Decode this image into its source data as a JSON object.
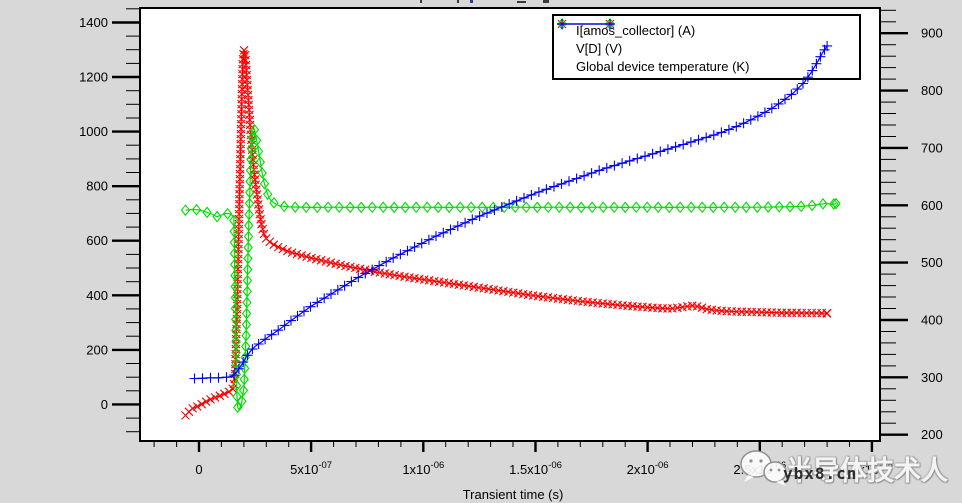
{
  "page": {
    "background": "#d8d8d8",
    "plot_background": "#ffffff"
  },
  "legend": {
    "entries": [
      {
        "label": "I[amos_collector] (A)",
        "color": "#ff0000",
        "marker": "x"
      },
      {
        "label": "V[D] (V)",
        "color": "#00dd00",
        "marker": "diamond"
      },
      {
        "label": "Global device temperature (K)",
        "color": "#0000ff",
        "marker": "plus"
      }
    ]
  },
  "watermark": {
    "icon": "wechat-icon",
    "cn_text": "半导体技术人",
    "site_text": "ybx8.cn"
  },
  "chart_data": {
    "type": "line",
    "xlabel": "Transient time (s)",
    "grid": false,
    "legend_position": "top-right",
    "axes": {
      "x": {
        "range": [
          -2.63e-07,
          3.036e-06
        ],
        "ticks": [
          {
            "v": 0,
            "label": "0"
          },
          {
            "v": 5e-07,
            "label": "5x10^-07"
          },
          {
            "v": 1e-06,
            "label": "1x10^-06"
          },
          {
            "v": 1.5e-06,
            "label": "1.5x10^-06"
          },
          {
            "v": 2e-06,
            "label": "2x10^-06"
          },
          {
            "v": 2.5e-06,
            "label": "2.5x10^-06"
          },
          {
            "v": 3e-06,
            "label": "3x10^-06"
          }
        ],
        "minor": {
          "start": -2e-07,
          "end": 3e-06,
          "step": 1e-07
        }
      },
      "y_left": {
        "range": [
          -134,
          1453
        ],
        "ticks": [
          0,
          200,
          400,
          600,
          800,
          1000,
          1200,
          1400
        ],
        "minor": {
          "start": -100,
          "end": 1450,
          "step": 50
        }
      },
      "y_right": {
        "range": [
          189,
          944
        ],
        "ticks": [
          200,
          300,
          400,
          500,
          600,
          700,
          800,
          900
        ],
        "minor": {
          "start": 200,
          "end": 940,
          "step": 20
        }
      }
    },
    "series": [
      {
        "name": "I[amos_collector] (A)",
        "axis": "left",
        "color": "#ff0000",
        "marker": "x",
        "marker_px_spacing": 5,
        "points": [
          [
            -6e-08,
            -40
          ],
          [
            -3e-08,
            -15
          ],
          [
            0.0,
            -5
          ],
          [
            2e-08,
            5
          ],
          [
            5e-08,
            18
          ],
          [
            8e-08,
            28
          ],
          [
            1.1e-07,
            38
          ],
          [
            1.3e-07,
            45
          ],
          [
            1.5e-07,
            55
          ],
          [
            1.6e-07,
            90
          ],
          [
            1.7e-07,
            350
          ],
          [
            1.8e-07,
            750
          ],
          [
            1.9e-07,
            1100
          ],
          [
            1.95e-07,
            1250
          ],
          [
            2e-07,
            1300
          ],
          [
            2.05e-07,
            1290
          ],
          [
            2.1e-07,
            1240
          ],
          [
            2.2e-07,
            1120
          ],
          [
            2.3e-07,
            1000
          ],
          [
            2.4e-07,
            900
          ],
          [
            2.5e-07,
            820
          ],
          [
            2.6e-07,
            760
          ],
          [
            2.7e-07,
            700
          ],
          [
            2.8e-07,
            655
          ],
          [
            2.9e-07,
            625
          ],
          [
            3e-07,
            608
          ],
          [
            3.2e-07,
            592
          ],
          [
            3.5e-07,
            578
          ],
          [
            4e-07,
            560
          ],
          [
            4.5e-07,
            548
          ],
          [
            5e-07,
            537
          ],
          [
            5.5e-07,
            527
          ],
          [
            6e-07,
            517
          ],
          [
            6.5e-07,
            508
          ],
          [
            7e-07,
            500
          ],
          [
            7.5e-07,
            492
          ],
          [
            8e-07,
            484
          ],
          [
            8.5e-07,
            477
          ],
          [
            9e-07,
            470
          ],
          [
            9.5e-07,
            464
          ],
          [
            1e-06,
            458
          ],
          [
            1.05e-06,
            452
          ],
          [
            1.1e-06,
            446
          ],
          [
            1.15e-06,
            440
          ],
          [
            1.2e-06,
            434
          ],
          [
            1.25e-06,
            428
          ],
          [
            1.3e-06,
            422
          ],
          [
            1.35e-06,
            416
          ],
          [
            1.4e-06,
            410
          ],
          [
            1.45e-06,
            404
          ],
          [
            1.5e-06,
            398
          ],
          [
            1.55e-06,
            393
          ],
          [
            1.6e-06,
            388
          ],
          [
            1.65e-06,
            383
          ],
          [
            1.7e-06,
            378
          ],
          [
            1.75e-06,
            374
          ],
          [
            1.8e-06,
            370
          ],
          [
            1.85e-06,
            366
          ],
          [
            1.9e-06,
            362
          ],
          [
            1.95e-06,
            359
          ],
          [
            2e-06,
            356
          ],
          [
            2.05e-06,
            353
          ],
          [
            2.1e-06,
            351
          ],
          [
            2.15e-06,
            356
          ],
          [
            2.2e-06,
            362
          ],
          [
            2.23e-06,
            358
          ],
          [
            2.26e-06,
            350
          ],
          [
            2.3e-06,
            345
          ],
          [
            2.35e-06,
            342
          ],
          [
            2.4e-06,
            340
          ],
          [
            2.45e-06,
            339
          ],
          [
            2.5e-06,
            338
          ],
          [
            2.55e-06,
            337
          ],
          [
            2.6e-06,
            336
          ],
          [
            2.65e-06,
            336
          ],
          [
            2.7e-06,
            335
          ],
          [
            2.75e-06,
            335
          ],
          [
            2.8e-06,
            334
          ]
        ]
      },
      {
        "name": "V[D] (V)",
        "axis": "left",
        "color": "#00dd00",
        "marker": "diamond",
        "marker_px_spacing": 11,
        "points": [
          [
            -6e-08,
            712
          ],
          [
            -3e-08,
            715
          ],
          [
            0.0,
            713
          ],
          [
            3e-08,
            706
          ],
          [
            6e-08,
            696
          ],
          [
            8e-08,
            688
          ],
          [
            1e-07,
            694
          ],
          [
            1.2e-07,
            700
          ],
          [
            1.4e-07,
            698
          ],
          [
            1.55e-07,
            688
          ],
          [
            1.62e-07,
            400
          ],
          [
            1.68e-07,
            50
          ],
          [
            1.72e-07,
            -10
          ],
          [
            1.78e-07,
            -18
          ],
          [
            1.85e-07,
            -10
          ],
          [
            1.9e-07,
            5
          ],
          [
            2e-07,
            60
          ],
          [
            2.1e-07,
            250
          ],
          [
            2.2e-07,
            600
          ],
          [
            2.3e-07,
            870
          ],
          [
            2.35e-07,
            960
          ],
          [
            2.4e-07,
            1005
          ],
          [
            2.45e-07,
            1012
          ],
          [
            2.5e-07,
            1000
          ],
          [
            2.6e-07,
            955
          ],
          [
            2.7e-07,
            905
          ],
          [
            2.8e-07,
            855
          ],
          [
            2.9e-07,
            815
          ],
          [
            3e-07,
            785
          ],
          [
            3.1e-07,
            762
          ],
          [
            3.2e-07,
            748
          ],
          [
            3.4e-07,
            735
          ],
          [
            3.6e-07,
            728
          ],
          [
            4e-07,
            724
          ],
          [
            5e-07,
            722
          ],
          [
            6e-07,
            723
          ],
          [
            7e-07,
            722
          ],
          [
            8e-07,
            723
          ],
          [
            9e-07,
            722
          ],
          [
            1e-06,
            723
          ],
          [
            1.1e-06,
            722
          ],
          [
            1.2e-06,
            723
          ],
          [
            1.3e-06,
            722
          ],
          [
            1.4e-06,
            723
          ],
          [
            1.5e-06,
            722
          ],
          [
            1.6e-06,
            723
          ],
          [
            1.7e-06,
            722
          ],
          [
            1.8e-06,
            723
          ],
          [
            1.9e-06,
            722
          ],
          [
            2e-06,
            723
          ],
          [
            2.1e-06,
            722
          ],
          [
            2.2e-06,
            723
          ],
          [
            2.3e-06,
            722
          ],
          [
            2.4e-06,
            723
          ],
          [
            2.5e-06,
            723
          ],
          [
            2.6e-06,
            724
          ],
          [
            2.65e-06,
            725
          ],
          [
            2.7e-06,
            727
          ],
          [
            2.74e-06,
            730
          ],
          [
            2.77e-06,
            734
          ],
          [
            2.8e-06,
            737
          ],
          [
            2.82e-06,
            733
          ],
          [
            2.84e-06,
            736
          ]
        ]
      },
      {
        "name": "Global device temperature (K)",
        "axis": "right",
        "color": "#0000ff",
        "marker": "plus",
        "marker_px_spacing": 8,
        "points": [
          [
            -2e-08,
            298
          ],
          [
            0.0,
            298
          ],
          [
            4e-08,
            299
          ],
          [
            8e-08,
            299
          ],
          [
            1.2e-07,
            300
          ],
          [
            1.5e-07,
            302
          ],
          [
            1.7e-07,
            310
          ],
          [
            1.9e-07,
            322
          ],
          [
            2.1e-07,
            335
          ],
          [
            2.3e-07,
            346
          ],
          [
            2.5e-07,
            354
          ],
          [
            2.8e-07,
            362
          ],
          [
            3e-07,
            368
          ],
          [
            3.3e-07,
            376
          ],
          [
            3.6e-07,
            384
          ],
          [
            4e-07,
            396
          ],
          [
            4.5e-07,
            410
          ],
          [
            5e-07,
            424
          ],
          [
            5.5e-07,
            436
          ],
          [
            6e-07,
            448
          ],
          [
            6.5e-07,
            460
          ],
          [
            7e-07,
            472
          ],
          [
            7.5e-07,
            483
          ],
          [
            8e-07,
            494
          ],
          [
            8.5e-07,
            505
          ],
          [
            9e-07,
            515
          ],
          [
            9.5e-07,
            525
          ],
          [
            1e-06,
            535
          ],
          [
            1.05e-06,
            545
          ],
          [
            1.1e-06,
            554
          ],
          [
            1.15e-06,
            563
          ],
          [
            1.2e-06,
            572
          ],
          [
            1.25e-06,
            581
          ],
          [
            1.3e-06,
            589
          ],
          [
            1.35e-06,
            597
          ],
          [
            1.4e-06,
            605
          ],
          [
            1.45e-06,
            613
          ],
          [
            1.5e-06,
            621
          ],
          [
            1.55e-06,
            628
          ],
          [
            1.6e-06,
            635
          ],
          [
            1.65e-06,
            642
          ],
          [
            1.7e-06,
            649
          ],
          [
            1.75e-06,
            656
          ],
          [
            1.8e-06,
            663
          ],
          [
            1.85e-06,
            669
          ],
          [
            1.9e-06,
            675
          ],
          [
            1.95e-06,
            681
          ],
          [
            2e-06,
            687
          ],
          [
            2.05e-06,
            693
          ],
          [
            2.1e-06,
            699
          ],
          [
            2.15e-06,
            705
          ],
          [
            2.2e-06,
            711
          ],
          [
            2.25e-06,
            717
          ],
          [
            2.3e-06,
            723
          ],
          [
            2.35e-06,
            730
          ],
          [
            2.4e-06,
            738
          ],
          [
            2.45e-06,
            747
          ],
          [
            2.5e-06,
            757
          ],
          [
            2.55e-06,
            768
          ],
          [
            2.6e-06,
            781
          ],
          [
            2.65e-06,
            796
          ],
          [
            2.7e-06,
            815
          ],
          [
            2.73e-06,
            832
          ],
          [
            2.76e-06,
            852
          ],
          [
            2.78e-06,
            866
          ],
          [
            2.8e-06,
            878
          ]
        ]
      }
    ]
  }
}
